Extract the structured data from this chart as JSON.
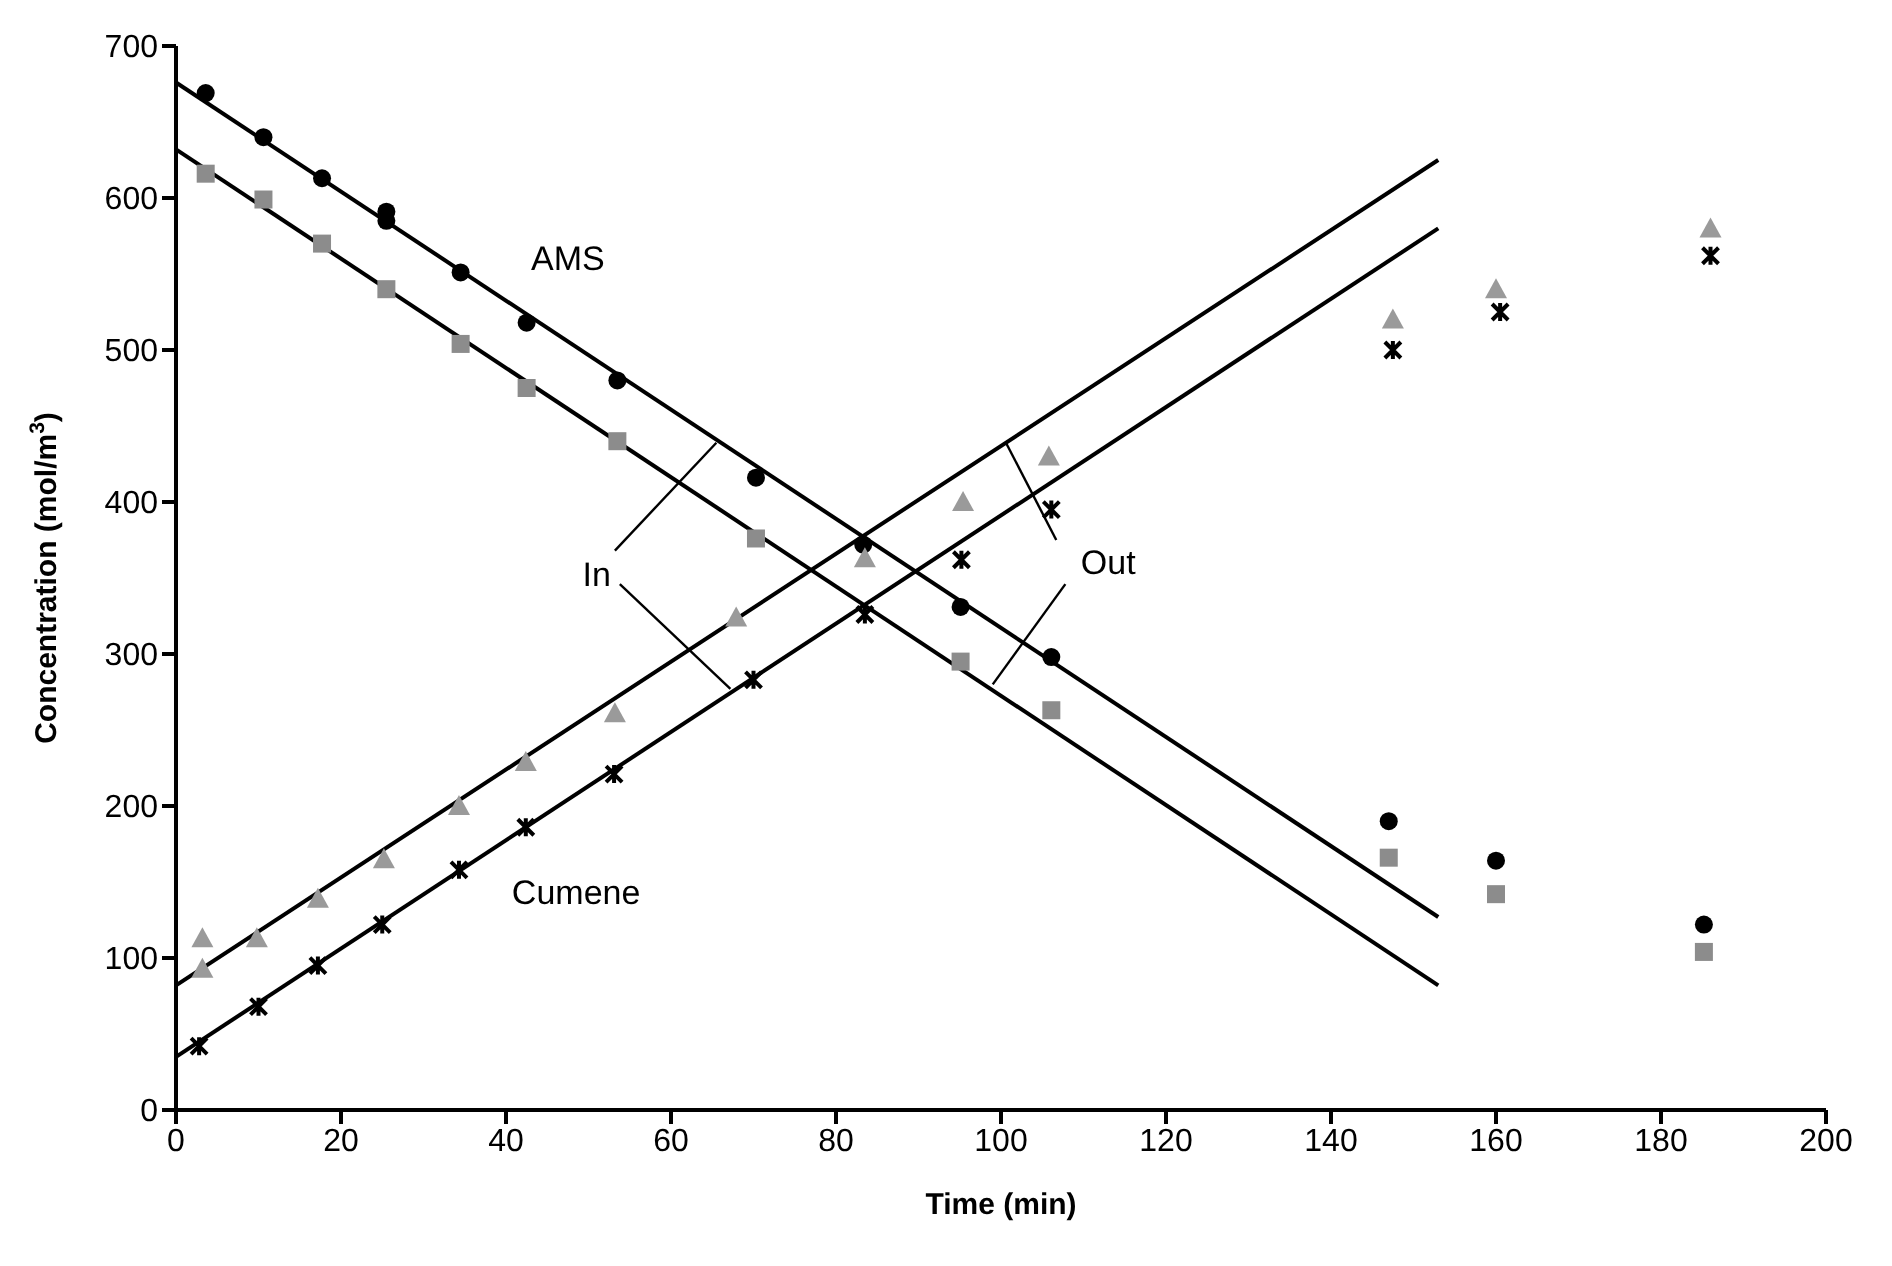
{
  "chart_data": {
    "type": "scatter",
    "xlabel": "Time (min)",
    "ylabel": "Concentration (mol/m$^{3}$)",
    "xlim": [
      0,
      200
    ],
    "xticks": [
      0,
      20,
      40,
      60,
      80,
      100,
      120,
      140,
      160,
      180,
      200
    ],
    "ylim": [
      0,
      700
    ],
    "yticks": [
      0,
      100,
      200,
      300,
      400,
      500,
      600,
      700
    ],
    "grid": false,
    "series": [
      {
        "type": "line",
        "color": "#000000",
        "marker": "none",
        "line_style": "solid",
        "x": [
          0,
          153
        ],
        "values": [
          676,
          127
        ]
      },
      {
        "type": "line",
        "color": "#000000",
        "marker": "none",
        "line_style": "solid",
        "x": [
          0,
          153
        ],
        "values": [
          632,
          82
        ]
      },
      {
        "type": "line",
        "color": "#000000",
        "marker": "none",
        "line_style": "solid",
        "x": [
          0,
          153
        ],
        "values": [
          82,
          625
        ]
      },
      {
        "type": "line",
        "color": "#000000",
        "marker": "none",
        "line_style": "solid",
        "x": [
          0,
          153
        ],
        "values": [
          35,
          580
        ]
      },
      {
        "color": "#000000",
        "marker": "circle",
        "x": [
          3.6,
          10.6,
          17.7,
          25.5,
          25.5,
          34.5,
          42.5,
          53.5,
          70.3,
          83.3,
          95.1,
          106.1,
          147,
          160,
          185.2
        ],
        "values": [
          669,
          640,
          613,
          591,
          585,
          551,
          518,
          480,
          416,
          372,
          331,
          298,
          190,
          164,
          122
        ]
      },
      {
        "color": "#8c8c8c",
        "marker": "square",
        "x": [
          3.6,
          10.6,
          17.7,
          25.5,
          34.5,
          42.5,
          53.5,
          70.3,
          95.1,
          106.1,
          147,
          160,
          185.2
        ],
        "values": [
          616,
          599,
          570,
          540,
          504,
          475,
          440,
          376,
          295,
          263,
          166,
          142,
          104
        ]
      },
      {
        "color": "#9a9a9a",
        "marker": "triangle",
        "x": [
          3.2,
          3.2,
          9.8,
          17.2,
          25.2,
          34.3,
          42.4,
          53.2,
          67.9,
          83.5,
          95.4,
          105.8,
          147.5,
          160,
          186
        ],
        "values": [
          113,
          93,
          113,
          139,
          165,
          200,
          229,
          261,
          324,
          363,
          400,
          430,
          520,
          540,
          580
        ]
      },
      {
        "color": "#000000",
        "marker": "cross",
        "x": [
          2.8,
          10,
          17.2,
          25,
          34.3,
          42.4,
          53.1,
          70,
          83.5,
          95.2,
          106.1,
          147.5,
          160.5,
          186
        ],
        "values": [
          42,
          68,
          95,
          122,
          158,
          186,
          221,
          283,
          326,
          362,
          395,
          500,
          525,
          562
        ]
      }
    ],
    "annotations": [
      "AMS",
      "Cumene",
      {
        "text": "In",
        "x": 65.5,
        "y": 439
      },
      {
        "text": "Out",
        "x": 100.6,
        "y": 439
      }
    ]
  }
}
